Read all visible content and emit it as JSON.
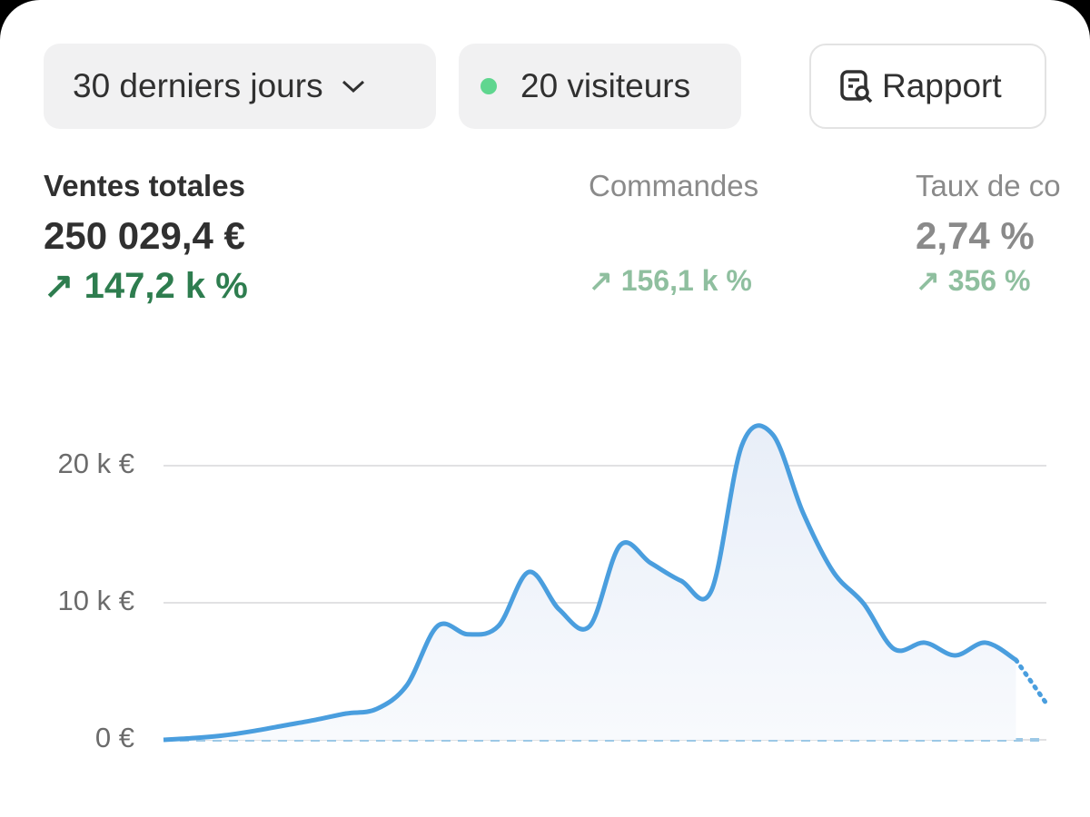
{
  "filters": {
    "period": "30 derniers jours",
    "visitors": "20 visiteurs",
    "report": "Rapport"
  },
  "metrics": [
    {
      "label": "Ventes totales",
      "value": "250 029,4 €",
      "change": "147,2 k %"
    },
    {
      "label": "Commandes",
      "change": "156,1 k %"
    },
    {
      "label": "Taux de co",
      "value": "2,74 %",
      "change": "356 %"
    }
  ],
  "chart_data": {
    "type": "line",
    "categories": [
      null,
      null,
      null,
      null,
      null,
      null,
      null,
      null,
      null,
      null,
      null,
      null,
      null,
      null,
      null,
      null,
      null,
      null,
      null,
      null,
      null,
      null,
      null,
      null,
      null,
      null,
      null,
      null,
      null,
      null
    ],
    "series": [
      {
        "color": "#4a9ede",
        "values": [
          0,
          130,
          330,
          660,
          1060,
          1460,
          1920,
          2250,
          4000,
          8300,
          7700,
          8300,
          12250,
          9500,
          8300,
          14200,
          12900,
          11600,
          10900,
          21500,
          22300,
          16600,
          12250,
          9930,
          6620,
          7090,
          6160,
          7090,
          5830,
          2650
        ]
      },
      {
        "color": "#9cc8e6",
        "values": [
          0,
          0,
          0,
          0,
          0,
          0,
          0,
          0,
          0,
          0,
          0,
          0,
          0,
          0,
          0,
          0,
          0,
          0,
          0,
          0,
          0,
          0,
          0,
          0,
          0,
          0,
          0,
          0,
          0,
          0
        ]
      }
    ],
    "ylim": [
      0,
      25000
    ],
    "yticks": [
      {
        "value": 0,
        "label": "0 €"
      },
      {
        "value": 10000,
        "label": "10 k €"
      },
      {
        "value": 20000,
        "label": "20 k €"
      }
    ],
    "grid": true
  }
}
